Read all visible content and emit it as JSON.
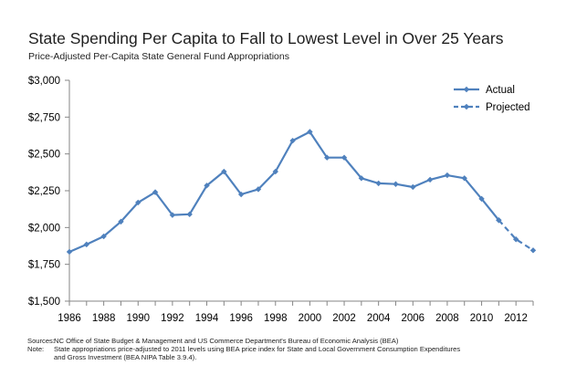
{
  "chart_data": {
    "type": "line",
    "title": "State Spending Per Capita to Fall to Lowest Level in Over 25 Years",
    "subtitle": "Price-Adjusted Per-Capita State General Fund Appropriations",
    "x_ticks": [
      1986,
      1988,
      1990,
      1992,
      1994,
      1996,
      1998,
      2000,
      2002,
      2004,
      2006,
      2008,
      2010,
      2012
    ],
    "y_ticks": [
      "$1,500",
      "$1,750",
      "$2,000",
      "$2,250",
      "$2,500",
      "$2,750",
      "$3,000"
    ],
    "y_tick_values": [
      1500,
      1750,
      2000,
      2250,
      2500,
      2750,
      3000
    ],
    "xlim": [
      1986,
      2013
    ],
    "ylim": [
      1500,
      3000
    ],
    "grid": false,
    "legend_position": "top-right",
    "series": [
      {
        "name": "Actual",
        "style": "solid",
        "x": [
          1986,
          1987,
          1988,
          1989,
          1990,
          1991,
          1992,
          1993,
          1994,
          1995,
          1996,
          1997,
          1998,
          1999,
          2000,
          2001,
          2002,
          2003,
          2004,
          2005,
          2006,
          2007,
          2008,
          2009,
          2010,
          2011
        ],
        "values": [
          1835,
          1885,
          1940,
          2040,
          2170,
          2240,
          2085,
          2090,
          2285,
          2380,
          2225,
          2260,
          2380,
          2590,
          2650,
          2475,
          2475,
          2335,
          2300,
          2295,
          2275,
          2325,
          2355,
          2335,
          2195,
          2050
        ]
      },
      {
        "name": "Projected",
        "style": "dashed",
        "x": [
          2011,
          2012,
          2013
        ],
        "values": [
          2050,
          1920,
          1845
        ]
      }
    ],
    "color": "#4f81bd"
  },
  "footer": {
    "sources_label": "Sources:",
    "sources_text": "NC Office of State Budget & Management and US Commerce Department's Bureau of Economic Analysis (BEA)",
    "note_label": "Note:",
    "note_text_1": "State appropriations price-adjusted to 2011 levels using BEA price index for State and Local Government Consumption Expenditures",
    "note_text_2": "and Gross Investment (BEA NIPA Table 3.9.4)."
  }
}
